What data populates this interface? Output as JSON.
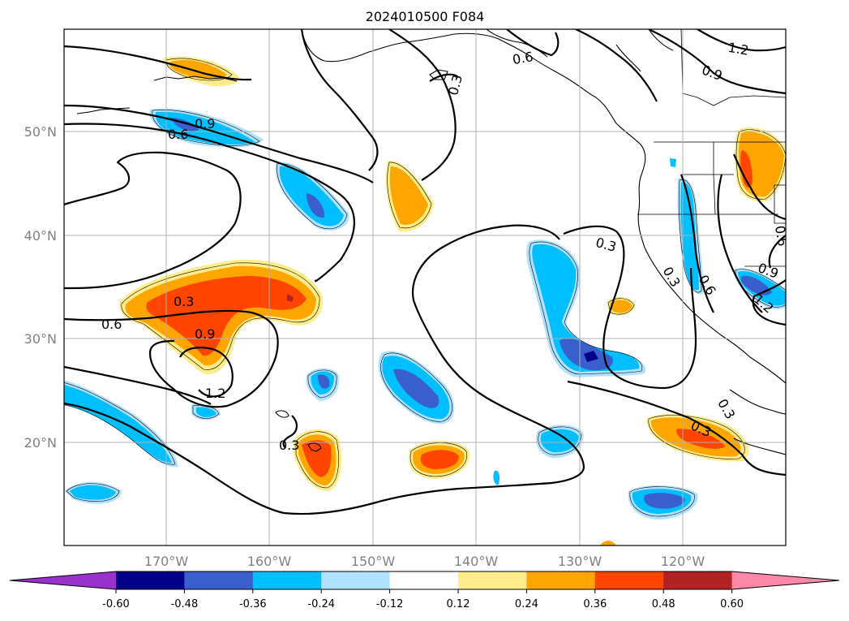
{
  "map": {
    "title": "2024010500 F084",
    "lon_labels": [
      "170°W",
      "160°W",
      "150°W",
      "140°W",
      "130°W",
      "120°W"
    ],
    "lat_labels": [
      "50°N",
      "40°N",
      "30°N",
      "20°N"
    ],
    "contour_labels": [
      "0.3",
      "0.6",
      "0.9",
      "1.2"
    ]
  },
  "colorbar": {
    "tick_labels": [
      "-0.60",
      "-0.48",
      "-0.36",
      "-0.24",
      "-0.12",
      "0.12",
      "0.24",
      "0.36",
      "0.48",
      "0.60"
    ],
    "colors": [
      "#9932cc",
      "#00008b",
      "#3a5fcd",
      "#00bfff",
      "#b0e2ff",
      "#ffffff",
      "#ffec8b",
      "#ffa500",
      "#ff4500",
      "#b22222",
      "#ff88aa"
    ]
  }
}
